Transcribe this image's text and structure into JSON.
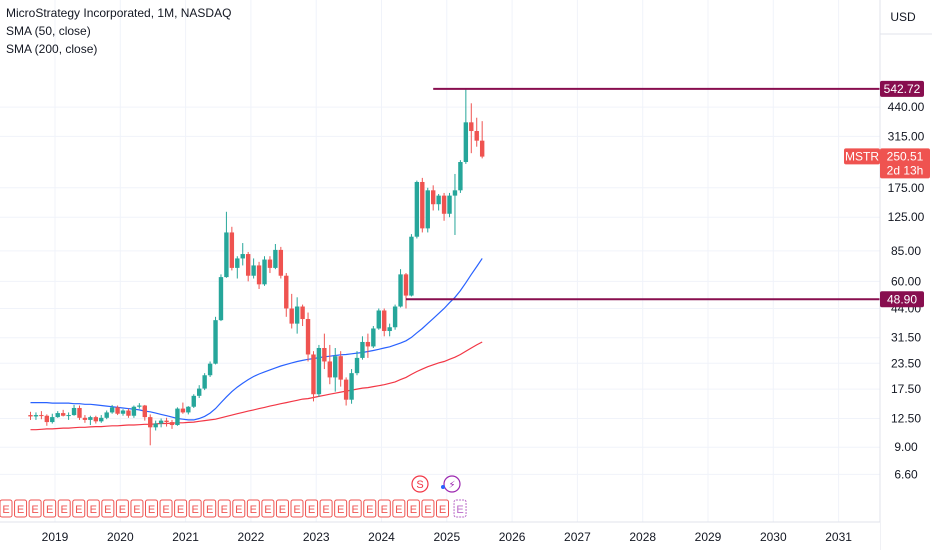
{
  "header": {
    "title": "MicroStrategy Incorporated, 1M, NASDAQ",
    "indicator_1": "SMA (50, close)",
    "indicator_2": "SMA (200, close)"
  },
  "currency_label": "USD",
  "colors": {
    "up": "#26a69a",
    "down": "#ef5350",
    "sma50": "#2962ff",
    "sma200": "#f23645",
    "level_line": "#880e4f",
    "grid": "#f0f3fa",
    "earnings_badge": "#ef5350",
    "next_earnings_badge": "#ba68c8",
    "dividend_badge": "#f23645",
    "split_badge": "#9c27b0"
  },
  "chart_data": {
    "type": "candlestick",
    "scale": "log",
    "y_ticks": [
      "6.60",
      "9.00",
      "12.50",
      "17.50",
      "23.50",
      "31.50",
      "44.00",
      "60.00",
      "85.00",
      "125.00",
      "175.00",
      "315.00",
      "440.00"
    ],
    "x_ticks": [
      "2019",
      "2020",
      "2021",
      "2022",
      "2023",
      "2024",
      "2025",
      "2026",
      "2027",
      "2028",
      "2029",
      "2030",
      "2031"
    ],
    "horizontal_levels": [
      {
        "label": "542.72",
        "value": 542.72
      },
      {
        "label": "48.90",
        "value": 48.9
      }
    ],
    "last_price": {
      "ticker": "MSTR",
      "value": "250.51",
      "countdown": "2d 13h"
    },
    "ohlc_start": "2018-08",
    "ohlc": [
      [
        13.0,
        13.5,
        12.3,
        12.8
      ],
      [
        12.8,
        13.4,
        12.3,
        13.0
      ],
      [
        13.0,
        13.6,
        12.4,
        12.9
      ],
      [
        12.9,
        13.1,
        11.5,
        12.0
      ],
      [
        12.0,
        13.2,
        11.8,
        12.7
      ],
      [
        12.7,
        13.6,
        12.6,
        13.3
      ],
      [
        13.3,
        13.8,
        12.8,
        12.9
      ],
      [
        12.9,
        13.4,
        12.3,
        13.0
      ],
      [
        13.0,
        14.6,
        12.9,
        14.1
      ],
      [
        14.1,
        14.5,
        12.3,
        12.6
      ],
      [
        12.6,
        13.0,
        11.9,
        12.3
      ],
      [
        12.3,
        12.9,
        11.6,
        12.7
      ],
      [
        12.7,
        12.9,
        11.8,
        12.1
      ],
      [
        12.1,
        13.0,
        11.9,
        12.6
      ],
      [
        12.6,
        13.7,
        12.4,
        13.4
      ],
      [
        13.4,
        14.6,
        13.2,
        14.2
      ],
      [
        14.2,
        14.5,
        13.0,
        13.2
      ],
      [
        13.2,
        13.9,
        12.9,
        13.7
      ],
      [
        13.7,
        14.0,
        12.6,
        12.9
      ],
      [
        12.9,
        14.5,
        12.6,
        14.3
      ],
      [
        14.3,
        14.9,
        14.0,
        14.5
      ],
      [
        14.5,
        14.6,
        12.2,
        12.7
      ],
      [
        12.7,
        13.1,
        9.2,
        11.3
      ],
      [
        11.3,
        12.2,
        10.9,
        11.8
      ],
      [
        11.8,
        12.5,
        11.3,
        12.2
      ],
      [
        12.2,
        12.6,
        11.4,
        12.0
      ],
      [
        12.0,
        12.3,
        11.1,
        11.6
      ],
      [
        11.6,
        14.2,
        11.5,
        14.0
      ],
      [
        14.0,
        15.0,
        13.2,
        13.4
      ],
      [
        13.4,
        14.4,
        13.1,
        14.3
      ],
      [
        14.3,
        16.5,
        14.1,
        16.2
      ],
      [
        16.2,
        18.3,
        15.8,
        17.6
      ],
      [
        17.6,
        21.0,
        17.3,
        20.5
      ],
      [
        20.5,
        24.0,
        20.1,
        23.4
      ],
      [
        23.4,
        40.0,
        23.2,
        38.5
      ],
      [
        38.5,
        65.0,
        38.1,
        63.0
      ],
      [
        63.0,
        133.0,
        62.5,
        105.0
      ],
      [
        105.0,
        112.0,
        68.0,
        70.0
      ],
      [
        70.0,
        80.0,
        62.0,
        78.0
      ],
      [
        78.0,
        93.0,
        72.0,
        82.0
      ],
      [
        82.0,
        84.0,
        60.0,
        64.0
      ],
      [
        64.0,
        78.0,
        62.0,
        72.0
      ],
      [
        72.0,
        75.0,
        55.0,
        58.0
      ],
      [
        58.0,
        80.0,
        57.0,
        77.0
      ],
      [
        77.0,
        80.0,
        66.0,
        70.0
      ],
      [
        70.0,
        92.0,
        69.0,
        86.0
      ],
      [
        86.0,
        89.0,
        62.0,
        64.0
      ],
      [
        64.0,
        66.0,
        40.0,
        44.0
      ],
      [
        44.0,
        52.0,
        35.0,
        37.0
      ],
      [
        37.0,
        50.0,
        33.0,
        45.0
      ],
      [
        45.0,
        46.0,
        36.0,
        39.0
      ],
      [
        39.0,
        42.0,
        24.0,
        26.0
      ],
      [
        26.0,
        27.0,
        15.2,
        16.5
      ],
      [
        16.5,
        29.0,
        16.0,
        28.0
      ],
      [
        28.0,
        33.0,
        22.0,
        24.0
      ],
      [
        24.0,
        29.0,
        18.5,
        20.0
      ],
      [
        20.0,
        28.0,
        17.0,
        25.5
      ],
      [
        25.5,
        27.0,
        18.0,
        19.5
      ],
      [
        19.5,
        20.0,
        14.5,
        15.5
      ],
      [
        15.5,
        22.0,
        14.8,
        21.0
      ],
      [
        21.0,
        27.0,
        20.5,
        25.0
      ],
      [
        25.0,
        32.0,
        24.5,
        30.0
      ],
      [
        30.0,
        33.0,
        25.0,
        28.5
      ],
      [
        28.5,
        36.0,
        28.0,
        35.0
      ],
      [
        35.0,
        44.0,
        34.5,
        43.0
      ],
      [
        43.0,
        44.0,
        32.0,
        34.0
      ],
      [
        34.0,
        37.0,
        32.0,
        35.5
      ],
      [
        35.5,
        46.0,
        34.5,
        45.0
      ],
      [
        45.0,
        69.0,
        44.5,
        65.0
      ],
      [
        65.0,
        66.0,
        44.0,
        51.0
      ],
      [
        51.0,
        103.0,
        50.5,
        100.0
      ],
      [
        100.0,
        190.0,
        98.0,
        187.0
      ],
      [
        187.0,
        196.0,
        105.0,
        110.0
      ],
      [
        110.0,
        175.0,
        105.0,
        170.0
      ],
      [
        170.0,
        180.0,
        135.0,
        145.0
      ],
      [
        145.0,
        163.0,
        135.0,
        160.0
      ],
      [
        160.0,
        165.0,
        120.0,
        130.0
      ],
      [
        130.0,
        165.0,
        125.0,
        160.0
      ],
      [
        160.0,
        205.0,
        102.0,
        170.0
      ],
      [
        170.0,
        240.0,
        165.0,
        235.0
      ],
      [
        235.0,
        543.0,
        230.0,
        370.0
      ],
      [
        370.0,
        460.0,
        260.0,
        335.0
      ],
      [
        335.0,
        390.0,
        280.0,
        300.0
      ],
      [
        300.0,
        375.0,
        245.0,
        250.0
      ]
    ],
    "sma50_start": "2018-08",
    "sma50": [
      15.0,
      15.0,
      15.0,
      15.0,
      14.9,
      14.9,
      14.9,
      14.9,
      14.8,
      14.8,
      14.7,
      14.7,
      14.6,
      14.5,
      14.4,
      14.3,
      14.2,
      14.1,
      14.0,
      13.9,
      13.8,
      13.6,
      13.5,
      13.3,
      13.1,
      12.9,
      12.7,
      12.5,
      12.4,
      12.3,
      12.3,
      12.5,
      12.8,
      13.3,
      14.0,
      15.0,
      16.0,
      17.0,
      17.9,
      18.7,
      19.5,
      20.2,
      20.8,
      21.3,
      21.8,
      22.3,
      22.8,
      23.2,
      23.6,
      24.0,
      24.3,
      24.6,
      24.8,
      25.1,
      25.3,
      25.5,
      25.7,
      25.9,
      26.0,
      26.2,
      26.4,
      26.6,
      26.9,
      27.2,
      27.6,
      28.0,
      28.4,
      29.0,
      29.6,
      30.4,
      31.6,
      33.3,
      35.0,
      37.1,
      39.2,
      41.5,
      44.0,
      47.0,
      50.0,
      54.0,
      59.0,
      65.0,
      71.0,
      78.0
    ],
    "sma200_start": "2018-08",
    "sma200": [
      11.0,
      11.0,
      11.05,
      11.1,
      11.1,
      11.15,
      11.2,
      11.2,
      11.25,
      11.3,
      11.3,
      11.35,
      11.4,
      11.4,
      11.45,
      11.5,
      11.5,
      11.55,
      11.6,
      11.6,
      11.65,
      11.7,
      11.7,
      11.75,
      11.8,
      11.8,
      11.85,
      11.9,
      11.9,
      11.95,
      12.0,
      12.1,
      12.2,
      12.3,
      12.4,
      12.6,
      12.8,
      13.0,
      13.2,
      13.4,
      13.6,
      13.8,
      14.0,
      14.2,
      14.4,
      14.6,
      14.8,
      15.0,
      15.2,
      15.4,
      15.6,
      15.7,
      15.9,
      16.1,
      16.3,
      16.5,
      16.7,
      16.9,
      17.1,
      17.3,
      17.5,
      17.7,
      17.8,
      18.0,
      18.2,
      18.4,
      18.7,
      19.0,
      19.5,
      20.0,
      20.7,
      21.4,
      22.0,
      22.6,
      23.1,
      23.6,
      24.0,
      24.6,
      25.2,
      26.0,
      27.0,
      28.0,
      29.0,
      30.0
    ],
    "event_markers": [
      {
        "type": "E",
        "count": 31
      },
      {
        "type": "E_next",
        "label": "E"
      },
      {
        "type": "dividend",
        "label": "S"
      },
      {
        "type": "split",
        "label": "⚡"
      }
    ],
    "grid": true,
    "legend_position": "top-left"
  }
}
